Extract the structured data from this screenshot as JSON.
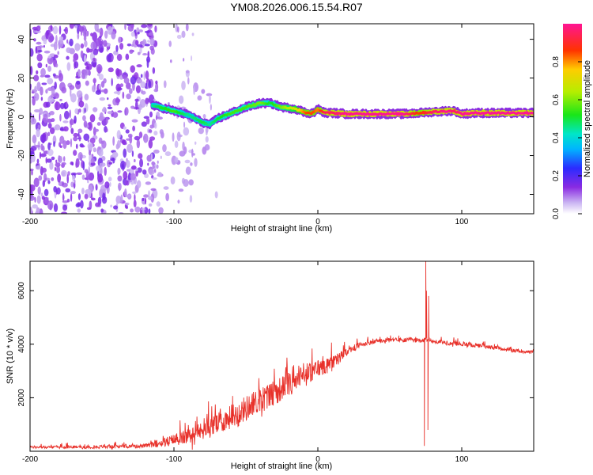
{
  "title": "YM08.2026.006.15.54.R07",
  "colorbar": {
    "label": "Normalized spectral amplitude",
    "ticks": [
      "0.0",
      "0.2",
      "0.4",
      "0.6",
      "0.8"
    ],
    "tick_values": [
      0.0,
      0.2,
      0.4,
      0.6,
      0.8
    ],
    "range": [
      0,
      1
    ]
  },
  "chart_data": [
    {
      "type": "heatmap",
      "name": "spectrogram",
      "title": "YM08.2026.006.15.54.R07",
      "xlabel": "Height of straight line (km)",
      "ylabel": "Frequency (Hz)",
      "xlim": [
        -200,
        150
      ],
      "ylim": [
        -50,
        48
      ],
      "xticks": [
        -200,
        -100,
        0,
        100
      ],
      "xtick_labels": [
        "-200",
        "-100",
        "0",
        "100"
      ],
      "yticks": [
        -40,
        -20,
        0,
        20,
        40
      ],
      "ytick_labels": [
        "-40",
        "-20",
        "0",
        "20",
        "40"
      ],
      "colormap": "normalized spectral amplitude 0-1 (white -> violet -> blue -> cyan -> green -> yellow -> orange -> red -> magenta)",
      "noise_region": {
        "x_range": [
          -200,
          -70
        ],
        "typical_amplitude": 0.05
      },
      "ridge": {
        "x": [
          -115,
          -110,
          -100,
          -90,
          -80,
          -75,
          -70,
          -60,
          -50,
          -40,
          -33,
          -25,
          -15,
          -8,
          -3,
          0,
          5,
          10,
          20,
          40,
          60,
          70,
          80,
          90,
          95,
          100,
          110,
          150
        ],
        "frequency": [
          6,
          5,
          3,
          1,
          -3,
          -4,
          -1,
          2,
          5,
          7,
          7,
          5,
          4,
          2,
          2,
          4,
          2,
          2,
          1.5,
          1.5,
          1.5,
          2,
          2.5,
          3,
          3,
          1.5,
          2,
          2
        ],
        "amplitude": [
          0.45,
          0.5,
          0.55,
          0.45,
          0.5,
          0.45,
          0.5,
          0.55,
          0.55,
          0.6,
          0.5,
          0.6,
          0.7,
          0.85,
          0.85,
          0.8,
          0.95,
          0.95,
          1.0,
          1.0,
          1.0,
          0.85,
          0.95,
          1.0,
          0.95,
          1.0,
          1.0,
          1.0
        ]
      }
    },
    {
      "type": "line",
      "name": "snr",
      "xlabel": "Height of straight line (km)",
      "ylabel": "SNR (10 * v/v)",
      "xlim": [
        -200,
        150
      ],
      "ylim": [
        0,
        7100
      ],
      "xticks": [
        -200,
        -100,
        0,
        100
      ],
      "xtick_labels": [
        "-200",
        "-100",
        "0",
        "100"
      ],
      "yticks": [
        2000,
        4000,
        6000
      ],
      "ytick_labels": [
        "2000",
        "4000",
        "6000"
      ],
      "color": "#e8312a",
      "series": [
        {
          "name": "SNR",
          "x": [
            -200,
            -180,
            -160,
            -140,
            -120,
            -110,
            -100,
            -90,
            -80,
            -70,
            -60,
            -50,
            -40,
            -30,
            -20,
            -10,
            0,
            10,
            20,
            30,
            40,
            50,
            60,
            70,
            74,
            75,
            76,
            78,
            80,
            90,
            100,
            110,
            120,
            130,
            140,
            150
          ],
          "y": [
            150,
            150,
            160,
            170,
            200,
            300,
            420,
            550,
            750,
            1000,
            1300,
            1600,
            1900,
            2200,
            2500,
            2800,
            3100,
            3300,
            3700,
            4000,
            4100,
            4150,
            4150,
            4150,
            4150,
            4200,
            4150,
            4150,
            4100,
            4050,
            4000,
            3950,
            3900,
            3800,
            3750,
            3700
          ]
        }
      ],
      "spikes": [
        {
          "x": 74,
          "y": 200
        },
        {
          "x": 75,
          "y": 7100
        },
        {
          "x": 75.5,
          "y": 6000
        },
        {
          "x": 76.5,
          "y": 800
        },
        {
          "x": 77,
          "y": 5800
        }
      ],
      "noise_amplitude": {
        "x": [
          -200,
          -120,
          -100,
          -80,
          -60,
          -40,
          -20,
          0,
          20,
          30,
          80,
          150
        ],
        "amplitude": [
          90,
          140,
          450,
          700,
          900,
          1000,
          900,
          700,
          350,
          180,
          160,
          140
        ]
      }
    }
  ]
}
